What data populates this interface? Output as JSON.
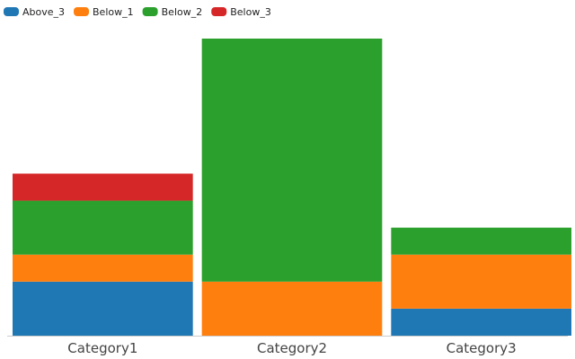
{
  "chart_data": {
    "type": "bar",
    "stacked": true,
    "categories": [
      "Category1",
      "Category2",
      "Category3"
    ],
    "series": [
      {
        "name": "Above_3",
        "color": "#1f77b4",
        "values": [
          2,
          0,
          1
        ]
      },
      {
        "name": "Below_1",
        "color": "#ff7f0e",
        "values": [
          1,
          2,
          2
        ]
      },
      {
        "name": "Below_2",
        "color": "#2ca02c",
        "values": [
          2,
          9,
          1
        ]
      },
      {
        "name": "Below_3",
        "color": "#d62728",
        "values": [
          1,
          0,
          0
        ]
      }
    ],
    "title": "",
    "xlabel": "",
    "ylabel": "",
    "ylim": [
      0,
      11
    ],
    "grid": false,
    "legend_position": "top-left"
  }
}
